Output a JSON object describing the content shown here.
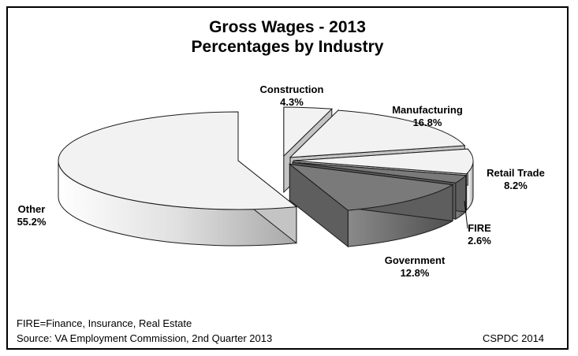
{
  "chart_data": {
    "type": "pie",
    "title": "Gross Wages - 2013",
    "subtitle": "Percentages by Industry",
    "slices": [
      {
        "label": "Construction",
        "value": 4.3,
        "value_label": "4.3%",
        "exploded": true
      },
      {
        "label": "Manufacturing",
        "value": 16.8,
        "value_label": "16.8%",
        "exploded": true
      },
      {
        "label": "Retail Trade",
        "value": 8.2,
        "value_label": "8.2%",
        "exploded": true
      },
      {
        "label": "FIRE",
        "value": 2.6,
        "value_label": "2.6%",
        "exploded": true
      },
      {
        "label": "Government",
        "value": 12.8,
        "value_label": "12.8%",
        "exploded": true
      },
      {
        "label": "Other",
        "value": 55.2,
        "value_label": "55.2%",
        "exploded": false
      }
    ],
    "colors": {
      "light": "#f2f2f2",
      "dark": "#7a7a7a",
      "outline": "#1a1a1a"
    }
  },
  "footer": {
    "note": "FIRE=Finance, Insurance, Real Estate",
    "source": "Source:  VA Employment Commission, 2nd Quarter 2013",
    "credit": "CSPDC 2014"
  }
}
